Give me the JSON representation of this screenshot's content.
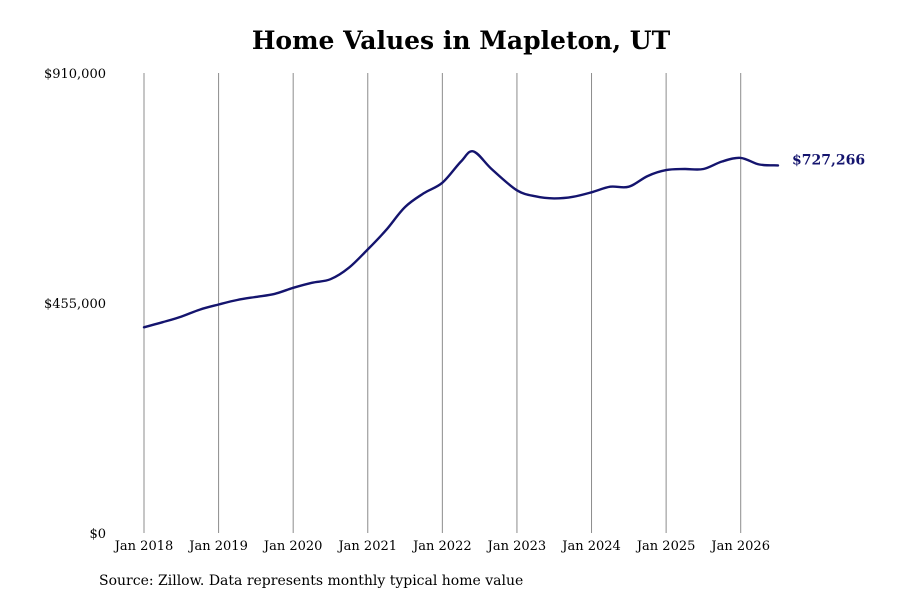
{
  "title": "Home Values in Mapleton, UT",
  "source": "Source: Zillow. Data represents monthly typical home value",
  "chart_data": {
    "type": "line",
    "title": "Home Values in Mapleton, UT",
    "xlabel": "",
    "ylabel": "",
    "ylim": [
      0,
      910000
    ],
    "xlim": [
      "2018-01",
      "2026-07"
    ],
    "y_ticks": [
      {
        "value": 0,
        "label": "$0"
      },
      {
        "value": 455000,
        "label": "$455,000"
      },
      {
        "value": 910000,
        "label": "$910,000"
      }
    ],
    "x_ticks": [
      "Jan 2018",
      "Jan 2019",
      "Jan 2020",
      "Jan 2021",
      "Jan 2022",
      "Jan 2023",
      "Jan 2024",
      "Jan 2025",
      "Jan 2026"
    ],
    "grid": "vertical",
    "line_color": "#14146e",
    "grid_color": "#8c8c8c",
    "end_label": "$727,266",
    "series": [
      {
        "x": [
          "2018-01",
          "2018-04",
          "2018-07",
          "2018-10",
          "2019-01",
          "2019-04",
          "2019-07",
          "2019-10",
          "2020-01",
          "2020-04",
          "2020-07",
          "2020-10",
          "2021-01",
          "2021-04",
          "2021-07",
          "2021-10",
          "2022-01",
          "2022-04",
          "2022-06",
          "2022-09",
          "2023-01",
          "2023-04",
          "2023-07",
          "2023-10",
          "2024-01",
          "2024-04",
          "2024-07",
          "2024-10",
          "2025-01",
          "2025-04",
          "2025-07",
          "2025-10",
          "2026-01",
          "2026-04",
          "2026-07"
        ],
        "values": [
          407000,
          417000,
          428000,
          442000,
          452000,
          461000,
          467000,
          473000,
          485000,
          495000,
          502000,
          525000,
          561000,
          600000,
          645000,
          672000,
          693000,
          735000,
          755000,
          719000,
          678000,
          666000,
          662000,
          665000,
          674000,
          685000,
          685000,
          706000,
          718000,
          720000,
          720000,
          735000,
          742000,
          729000,
          727266
        ]
      }
    ]
  }
}
